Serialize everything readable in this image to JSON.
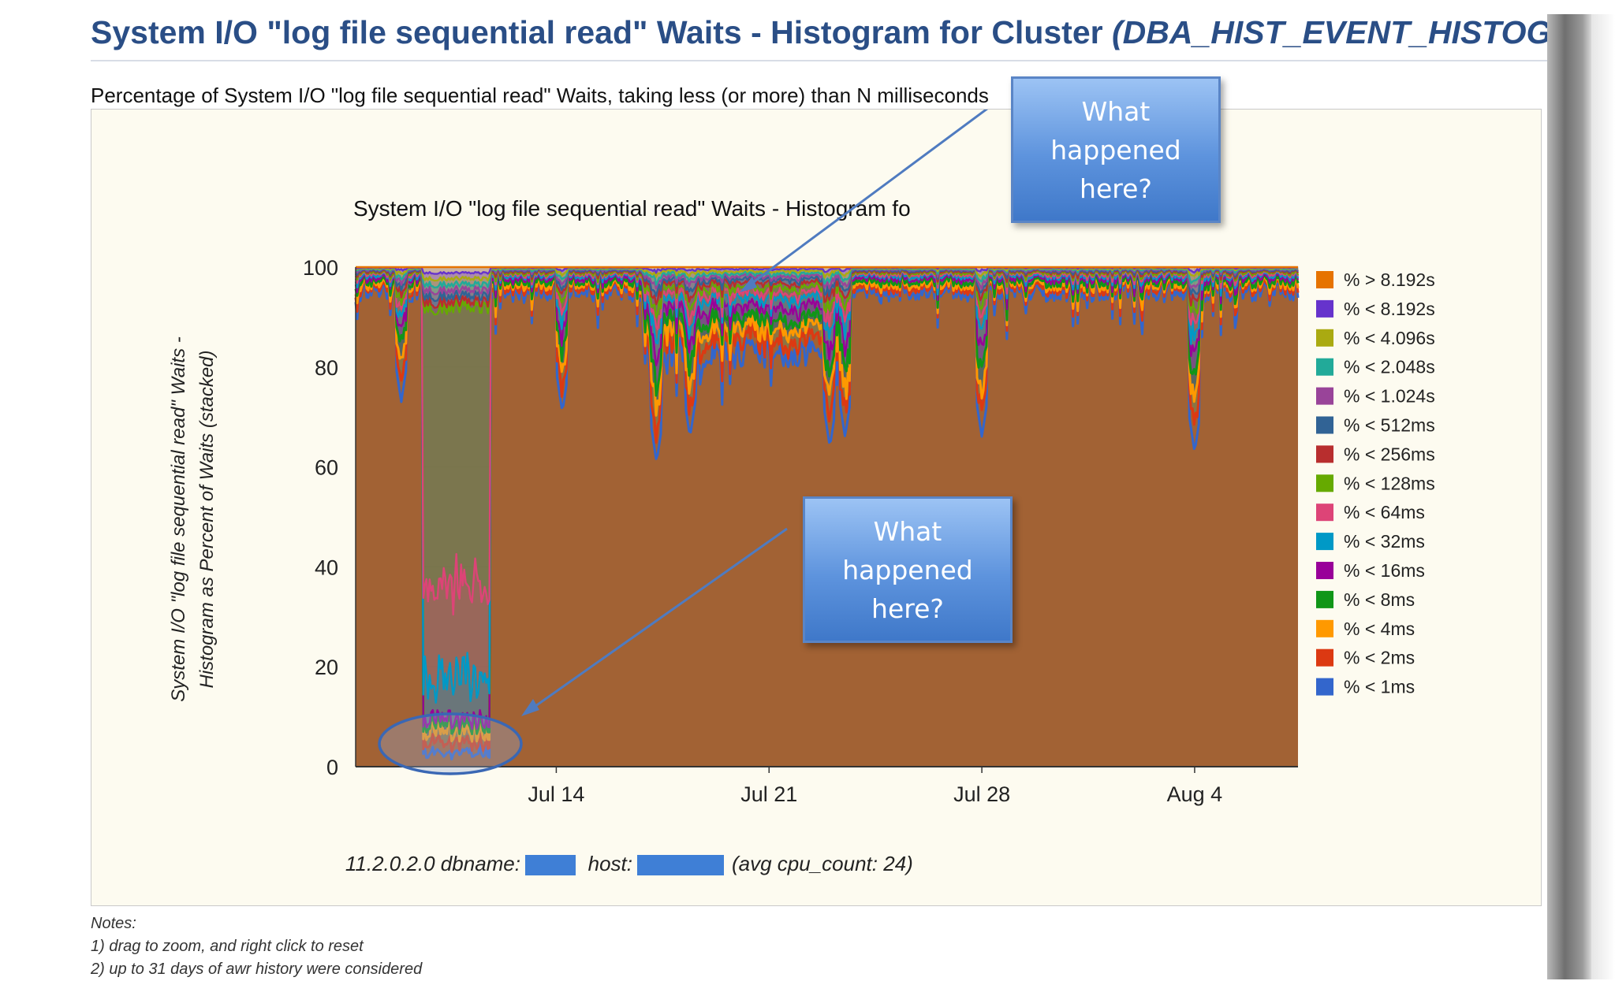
{
  "page": {
    "title_main": "System I/O \"log file sequential read\" Waits - Histogram for Cluster ",
    "title_italic": "(DBA_HIST_EVENT_HISTOGRAM)",
    "subtitle": "Percentage of System I/O \"log file sequential read\" Waits, taking less (or more) than N milliseconds"
  },
  "callouts": [
    {
      "text": "What happened here?"
    },
    {
      "text": "What happened here?"
    }
  ],
  "notes": {
    "heading": "Notes:",
    "items": [
      "1) drag to zoom, and right click to reset",
      "2) up to 31 days of awr history were considered"
    ]
  },
  "colors": {
    "plot_bg": "#bfcde6",
    "grid": "#a6b3cc",
    "callout": "#5d93dd",
    "frame": "#c9c9c9",
    "redact": "#3f7fd6"
  },
  "chart_data": {
    "type": "area",
    "stacked": true,
    "title": "System I/O \"log file sequential read\" Waits - Histogram fo",
    "ylabel_line1": "System I/O \"log file sequential read\" Waits -",
    "ylabel_line2": "Histogram as Percent of Waits (stacked)",
    "xlabel": "11.2.0.2.0 dbname:",
    "xlabel_host": "host:",
    "xlabel_tail": "(avg cpu_count: 24)",
    "ylim": [
      0,
      100
    ],
    "yticks": [
      0,
      20,
      40,
      60,
      80,
      100
    ],
    "xlim_days": [
      0,
      31
    ],
    "xticks": [
      {
        "label": "Jul 14",
        "day": 6.6
      },
      {
        "label": "Jul 21",
        "day": 13.6
      },
      {
        "label": "Jul 28",
        "day": 20.6
      },
      {
        "label": "Aug 4",
        "day": 27.6
      }
    ],
    "series": [
      {
        "name": "% < 1ms",
        "color": "#3366cc"
      },
      {
        "name": "% < 2ms",
        "color": "#dc3912"
      },
      {
        "name": "% < 4ms",
        "color": "#ff9900"
      },
      {
        "name": "% < 8ms",
        "color": "#109618"
      },
      {
        "name": "% < 16ms",
        "color": "#990099"
      },
      {
        "name": "% < 32ms",
        "color": "#0099c6"
      },
      {
        "name": "% < 64ms",
        "color": "#dd4477"
      },
      {
        "name": "% < 128ms",
        "color": "#66aa00"
      },
      {
        "name": "% < 256ms",
        "color": "#b82e2e"
      },
      {
        "name": "% < 512ms",
        "color": "#316395"
      },
      {
        "name": "% < 1.024s",
        "color": "#994499"
      },
      {
        "name": "% < 2.048s",
        "color": "#22aa99"
      },
      {
        "name": "% < 4.096s",
        "color": "#aaaa11"
      },
      {
        "name": "% < 8.192s",
        "color": "#6633cc"
      },
      {
        "name": "% > 8.192s",
        "color": "#e67300"
      }
    ],
    "legend_position": "right",
    "profile": {
      "anomaly_days": [
        2.2,
        4.4
      ],
      "anomaly_fast_pct": 7,
      "anomaly_mid_pct": 65,
      "anomaly_upper_pct": 83,
      "baseline_fast_pct": 95,
      "slow_period_days": [
        9.5,
        16.2
      ],
      "slow_period_fast_pct": 83,
      "dips": [
        {
          "day": 1.5,
          "value": 73
        },
        {
          "day": 6.8,
          "value": 71
        },
        {
          "day": 9.9,
          "value": 61
        },
        {
          "day": 11.0,
          "value": 66
        },
        {
          "day": 15.6,
          "value": 64
        },
        {
          "day": 16.1,
          "value": 66
        },
        {
          "day": 20.6,
          "value": 66
        },
        {
          "day": 27.6,
          "value": 63
        }
      ]
    }
  }
}
